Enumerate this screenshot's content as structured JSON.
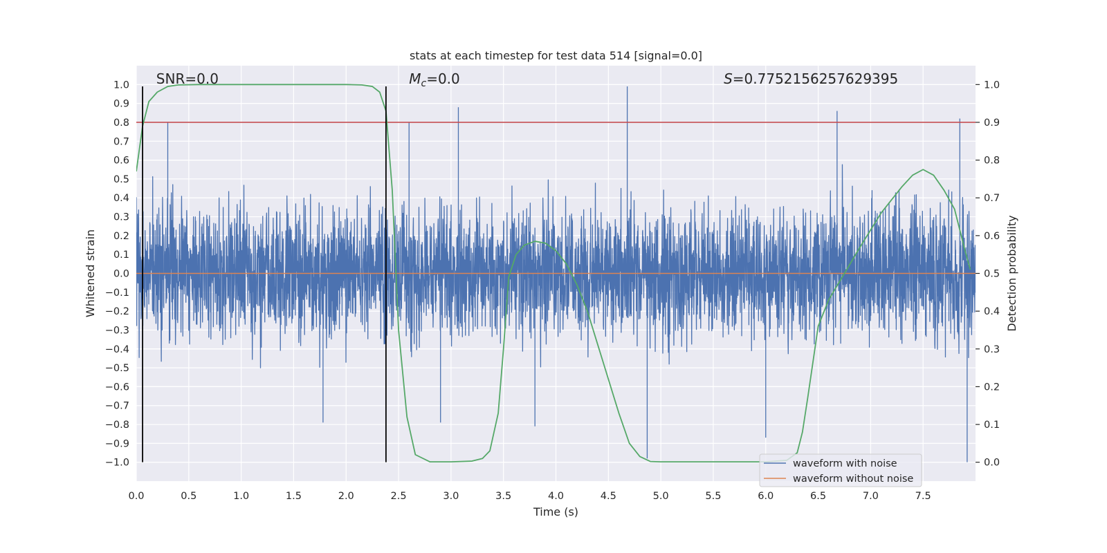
{
  "chart_data": {
    "type": "line",
    "title": "stats at each timestep for test data 514 [signal=0.0]",
    "xlabel": "Time (s)",
    "ylabel_left": "Whitened strain",
    "ylabel_right": "Detection probability",
    "xlim": [
      0.0,
      8.0
    ],
    "ylim_left": [
      -1.1,
      1.1
    ],
    "ylim_right": [
      -0.05,
      1.05
    ],
    "x_ticks": [
      0.0,
      0.5,
      1.0,
      1.5,
      2.0,
      2.5,
      3.0,
      3.5,
      4.0,
      4.5,
      5.0,
      5.5,
      6.0,
      6.5,
      7.0,
      7.5
    ],
    "x_tick_labels": [
      "0.0",
      "0.5",
      "1.0",
      "1.5",
      "2.0",
      "2.5",
      "3.0",
      "3.5",
      "4.0",
      "4.5",
      "5.0",
      "5.5",
      "6.0",
      "6.5",
      "7.0",
      "7.5"
    ],
    "y_left_ticks": [
      1.0,
      0.9,
      0.8,
      0.7,
      0.6,
      0.5,
      0.4,
      0.3,
      0.2,
      0.1,
      0.0,
      -0.1,
      -0.2,
      -0.3,
      -0.4,
      -0.5,
      -0.6,
      -0.7,
      -0.8,
      -0.9,
      -1.0
    ],
    "y_left_tick_labels": [
      "1.0",
      "0.9",
      "0.8",
      "0.7",
      "0.6",
      "0.5",
      "0.4",
      "0.3",
      "0.2",
      "0.1",
      "0.0",
      "−0.1",
      "−0.2",
      "−0.3",
      "−0.4",
      "−0.5",
      "−0.6",
      "−0.7",
      "−0.8",
      "−0.9",
      "−1.0"
    ],
    "y_right_ticks": [
      1.0,
      0.9,
      0.8,
      0.7,
      0.6,
      0.5,
      0.4,
      0.3,
      0.2,
      0.1,
      0.0
    ],
    "y_right_tick_labels": [
      "1.0",
      "0.9",
      "0.8",
      "0.7",
      "0.6",
      "0.5",
      "0.4",
      "0.3",
      "0.2",
      "0.1",
      "0.0"
    ],
    "grid": true,
    "legend_placement": "lower-right",
    "annotations": {
      "snr": "SNR=0.0",
      "mc_symbol": "M",
      "mc_sub": "c",
      "mc_value": "=0.0",
      "s_symbol": "S",
      "s_value": "=0.7752156257629395"
    },
    "vertical_markers_x": [
      0.06,
      2.38
    ],
    "threshold_line": {
      "axis": "right",
      "value": 0.9
    },
    "series": [
      {
        "name": "waveform with noise",
        "axis": "left",
        "color": "#4c72b0",
        "style": "dense noise trace",
        "approx_amplitude_envelope": [
          -1.0,
          0.98
        ],
        "peaks": [
          {
            "x": 0.3,
            "y": 0.8
          },
          {
            "x": 2.6,
            "y": 0.8
          },
          {
            "x": 3.07,
            "y": 0.88
          },
          {
            "x": 4.68,
            "y": 0.99
          },
          {
            "x": 6.68,
            "y": 0.86
          },
          {
            "x": 7.85,
            "y": 0.82
          },
          {
            "x": 1.78,
            "y": -0.79
          },
          {
            "x": 2.9,
            "y": -0.79
          },
          {
            "x": 3.8,
            "y": -0.81
          },
          {
            "x": 4.87,
            "y": -0.98
          },
          {
            "x": 6.0,
            "y": -0.87
          },
          {
            "x": 7.92,
            "y": -1.0
          }
        ]
      },
      {
        "name": "waveform without noise",
        "axis": "left",
        "color": "#dd8452",
        "x": [
          0.0,
          8.0
        ],
        "y": [
          0.0,
          0.0
        ]
      },
      {
        "name": "",
        "axis": "right",
        "color": "#55a868",
        "x": [
          0.0,
          0.06,
          0.12,
          0.2,
          0.3,
          0.4,
          0.6,
          1.0,
          1.5,
          2.0,
          2.15,
          2.25,
          2.32,
          2.38,
          2.44,
          2.5,
          2.58,
          2.66,
          2.8,
          3.0,
          3.2,
          3.3,
          3.37,
          3.45,
          3.5,
          3.55,
          3.62,
          3.7,
          3.8,
          3.9,
          4.0,
          4.1,
          4.2,
          4.3,
          4.4,
          4.5,
          4.6,
          4.7,
          4.8,
          4.9,
          5.0,
          5.5,
          6.0,
          6.2,
          6.3,
          6.35,
          6.4,
          6.5,
          6.6,
          6.75,
          6.9,
          7.1,
          7.3,
          7.4,
          7.5,
          7.6,
          7.7,
          7.8,
          7.9,
          7.95
        ],
        "y": [
          0.77,
          0.89,
          0.955,
          0.98,
          0.995,
          0.999,
          1.0,
          1.0,
          1.0,
          1.0,
          0.999,
          0.995,
          0.98,
          0.93,
          0.72,
          0.35,
          0.12,
          0.02,
          0.001,
          0.001,
          0.003,
          0.01,
          0.03,
          0.13,
          0.3,
          0.49,
          0.55,
          0.575,
          0.585,
          0.58,
          0.56,
          0.525,
          0.47,
          0.4,
          0.31,
          0.22,
          0.13,
          0.05,
          0.015,
          0.002,
          0.001,
          0.001,
          0.001,
          0.005,
          0.025,
          0.08,
          0.17,
          0.36,
          0.43,
          0.5,
          0.57,
          0.66,
          0.73,
          0.76,
          0.775,
          0.76,
          0.72,
          0.67,
          0.56,
          0.51
        ]
      }
    ]
  }
}
